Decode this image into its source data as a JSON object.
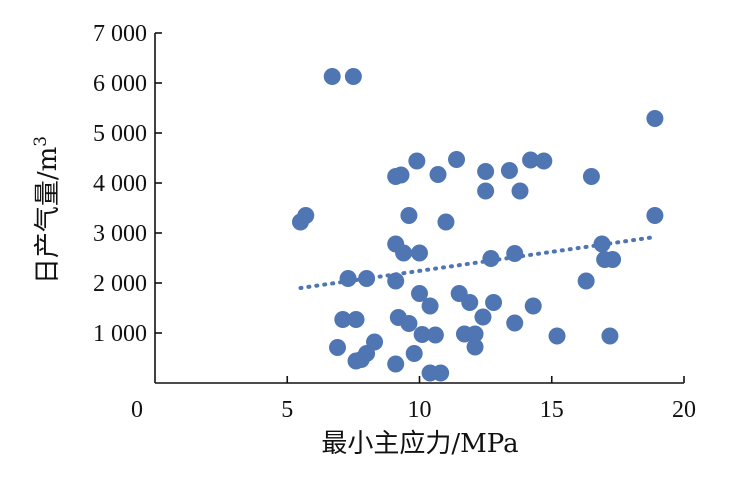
{
  "chart_data": {
    "type": "scatter",
    "xlabel": "最小主应力/MPa",
    "ylabel_main": "日产气量/m",
    "ylabel_sup": "3",
    "xlim": [
      0,
      20
    ],
    "ylim": [
      0,
      7000
    ],
    "x_ticks": [
      0,
      5,
      10,
      15,
      20
    ],
    "x_tick_labels": [
      "0",
      "5",
      "10",
      "15",
      "20"
    ],
    "y_ticks": [
      1000,
      2000,
      3000,
      4000,
      5000,
      6000,
      7000
    ],
    "y_tick_labels": [
      "1 000",
      "2 000",
      "3 000",
      "4 000",
      "5 000",
      "6 000",
      "7 000"
    ],
    "grid": false,
    "legend": "none",
    "colors": {
      "points": "#4F76B3",
      "trend": "#4F76B3",
      "axes": "#111111"
    },
    "points": [
      {
        "x": 6.7,
        "y": 6130
      },
      {
        "x": 7.5,
        "y": 6130
      },
      {
        "x": 18.9,
        "y": 5290
      },
      {
        "x": 9.9,
        "y": 4440
      },
      {
        "x": 11.4,
        "y": 4470
      },
      {
        "x": 14.2,
        "y": 4460
      },
      {
        "x": 14.7,
        "y": 4440
      },
      {
        "x": 9.1,
        "y": 4130
      },
      {
        "x": 9.3,
        "y": 4160
      },
      {
        "x": 10.7,
        "y": 4170
      },
      {
        "x": 12.5,
        "y": 4230
      },
      {
        "x": 13.4,
        "y": 4250
      },
      {
        "x": 16.5,
        "y": 4130
      },
      {
        "x": 12.5,
        "y": 3840
      },
      {
        "x": 13.8,
        "y": 3840
      },
      {
        "x": 5.5,
        "y": 3220
      },
      {
        "x": 5.7,
        "y": 3350
      },
      {
        "x": 9.6,
        "y": 3350
      },
      {
        "x": 11.0,
        "y": 3220
      },
      {
        "x": 18.9,
        "y": 3350
      },
      {
        "x": 9.1,
        "y": 2780
      },
      {
        "x": 9.4,
        "y": 2600
      },
      {
        "x": 10.0,
        "y": 2600
      },
      {
        "x": 16.9,
        "y": 2780
      },
      {
        "x": 12.7,
        "y": 2490
      },
      {
        "x": 13.6,
        "y": 2590
      },
      {
        "x": 17.0,
        "y": 2470
      },
      {
        "x": 17.3,
        "y": 2470
      },
      {
        "x": 7.3,
        "y": 2090
      },
      {
        "x": 8.0,
        "y": 2090
      },
      {
        "x": 9.1,
        "y": 2040
      },
      {
        "x": 16.3,
        "y": 2040
      },
      {
        "x": 10.0,
        "y": 1790
      },
      {
        "x": 11.5,
        "y": 1790
      },
      {
        "x": 10.4,
        "y": 1540
      },
      {
        "x": 11.9,
        "y": 1610
      },
      {
        "x": 12.8,
        "y": 1610
      },
      {
        "x": 14.3,
        "y": 1540
      },
      {
        "x": 7.1,
        "y": 1270
      },
      {
        "x": 7.6,
        "y": 1270
      },
      {
        "x": 9.2,
        "y": 1310
      },
      {
        "x": 9.6,
        "y": 1190
      },
      {
        "x": 12.4,
        "y": 1320
      },
      {
        "x": 13.6,
        "y": 1200
      },
      {
        "x": 10.1,
        "y": 970
      },
      {
        "x": 10.6,
        "y": 960
      },
      {
        "x": 11.7,
        "y": 980
      },
      {
        "x": 12.1,
        "y": 980
      },
      {
        "x": 15.2,
        "y": 940
      },
      {
        "x": 17.2,
        "y": 940
      },
      {
        "x": 6.9,
        "y": 710
      },
      {
        "x": 8.3,
        "y": 820
      },
      {
        "x": 12.1,
        "y": 720
      },
      {
        "x": 7.6,
        "y": 440
      },
      {
        "x": 7.8,
        "y": 470
      },
      {
        "x": 8.0,
        "y": 590
      },
      {
        "x": 9.1,
        "y": 380
      },
      {
        "x": 9.8,
        "y": 590
      },
      {
        "x": 10.4,
        "y": 200
      },
      {
        "x": 10.8,
        "y": 200
      }
    ],
    "trendline": {
      "x": [
        5.5,
        18.9
      ],
      "y": [
        1900,
        2920
      ]
    }
  }
}
